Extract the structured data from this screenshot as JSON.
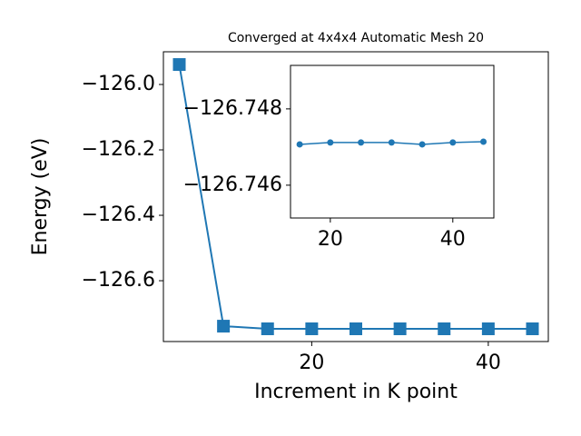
{
  "chart_data": [
    {
      "type": "line",
      "title": "Converged at 4x4x4 Automatic Mesh 20",
      "x_label": "Increment in K point",
      "y_label": "Energy (eV)",
      "x": [
        5,
        10,
        15,
        20,
        25,
        30,
        35,
        40,
        45
      ],
      "series": [
        {
          "color": "#1f77b4",
          "marker": "square",
          "values": [
            -125.939,
            -126.739,
            -126.7471,
            -126.7471,
            -126.7471,
            -126.7471,
            -126.7471,
            -126.7471,
            -126.7471
          ]
        }
      ],
      "xlim": [
        3.2,
        46.8
      ],
      "xticks": [
        20,
        40
      ],
      "ylim": [
        -126.786,
        -125.9
      ],
      "yticks": [
        {
          "value": -126.6,
          "label": "−126.6"
        },
        {
          "value": -126.4,
          "label": "−126.4"
        },
        {
          "value": -126.2,
          "label": "−126.2"
        },
        {
          "value": -126.0,
          "label": "−126.0"
        }
      ]
    },
    {
      "type": "line",
      "x": [
        15,
        20,
        25,
        30,
        35,
        40,
        45
      ],
      "series": [
        {
          "color": "#1f77b4",
          "marker": "circle",
          "values": [
            -126.74707,
            -126.74712,
            -126.74712,
            -126.74712,
            -126.74707,
            -126.74712,
            -126.74714
          ]
        }
      ],
      "xlim": [
        13.5,
        46.7
      ],
      "xticks": [
        20,
        40
      ],
      "ylim": [
        -126.74514,
        -126.74914
      ],
      "yticks": [
        {
          "value": -126.746,
          "label": "−126.746"
        },
        {
          "value": -126.748,
          "label": "−126.748"
        }
      ]
    }
  ]
}
